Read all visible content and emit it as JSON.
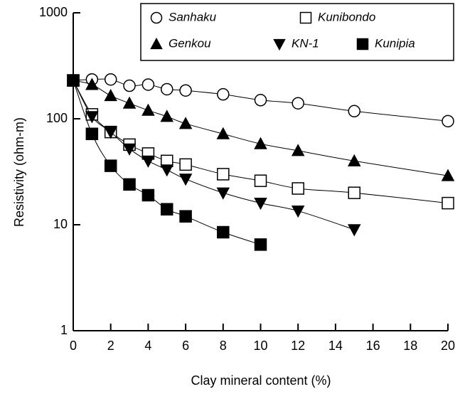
{
  "chart_data": {
    "type": "scatter",
    "y_log": true,
    "xlabel": "Clay mineral content (%)",
    "ylabel": "Resistivity (ohm-m)",
    "xlim": [
      0,
      20
    ],
    "xticks": [
      0,
      2,
      4,
      6,
      8,
      10,
      12,
      14,
      16,
      18,
      20
    ],
    "ylim": [
      1,
      1000
    ],
    "yticks": [
      1,
      10,
      100,
      1000
    ],
    "series": [
      {
        "name": "Sanhaku",
        "color": "#000000",
        "marker": "circle",
        "filled": false,
        "x": [
          0,
          1,
          2,
          3,
          4,
          5,
          6,
          8,
          10,
          12,
          15,
          20
        ],
        "values": [
          230,
          235,
          235,
          205,
          210,
          190,
          185,
          170,
          150,
          140,
          118,
          95
        ]
      },
      {
        "name": "Kunibondo",
        "color": "#000000",
        "marker": "square",
        "filled": false,
        "x": [
          0,
          1,
          2,
          3,
          4,
          5,
          6,
          8,
          10,
          12,
          15,
          20
        ],
        "values": [
          230,
          110,
          75,
          57,
          47,
          40,
          37,
          30,
          26,
          22,
          20,
          16
        ]
      },
      {
        "name": "Genkou",
        "color": "#000000",
        "marker": "triangle-up",
        "filled": true,
        "x": [
          0,
          1,
          2,
          3,
          4,
          5,
          6,
          8,
          10,
          12,
          15,
          20
        ],
        "values": [
          230,
          210,
          165,
          140,
          120,
          105,
          90,
          72,
          58,
          50,
          40,
          29
        ]
      },
      {
        "name": "KN-1",
        "color": "#000000",
        "marker": "triangle-down",
        "filled": true,
        "x": [
          0,
          1,
          2,
          3,
          4,
          5,
          6,
          8,
          10,
          12,
          15
        ],
        "values": [
          230,
          105,
          75,
          52,
          40,
          33,
          27,
          20,
          16,
          13.5,
          9
        ]
      },
      {
        "name": "Kunipia",
        "color": "#000000",
        "marker": "square",
        "filled": true,
        "x": [
          0,
          1,
          2,
          3,
          4,
          5,
          6,
          8,
          10
        ],
        "values": [
          230,
          72,
          36,
          24,
          19,
          14,
          12,
          8.5,
          6.5
        ]
      }
    ]
  }
}
